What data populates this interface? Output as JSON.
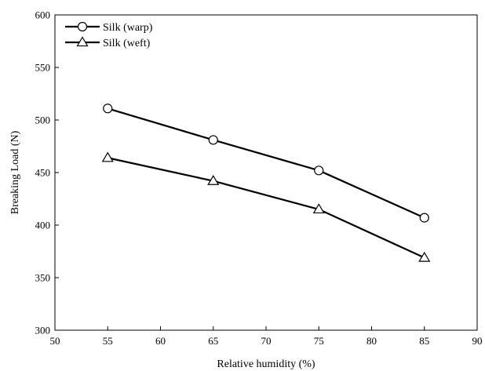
{
  "chart_data": {
    "type": "line",
    "xlabel": "Relative humidity (%)",
    "ylabel": "Breaking Load (N)",
    "xlim": [
      50,
      90
    ],
    "ylim": [
      300,
      600
    ],
    "xticks": [
      50,
      55,
      60,
      65,
      70,
      75,
      80,
      85,
      90
    ],
    "yticks": [
      300,
      350,
      400,
      450,
      500,
      550,
      600
    ],
    "grid": false,
    "legend_position": "top-left",
    "x": [
      55,
      65,
      75,
      85
    ],
    "series": [
      {
        "name": "Silk (warp)",
        "marker": "circle",
        "values": [
          511,
          481,
          452,
          407
        ],
        "color": "#000000"
      },
      {
        "name": "Silk (weft)",
        "marker": "triangle",
        "values": [
          464,
          442,
          415,
          369
        ],
        "color": "#000000"
      }
    ]
  }
}
